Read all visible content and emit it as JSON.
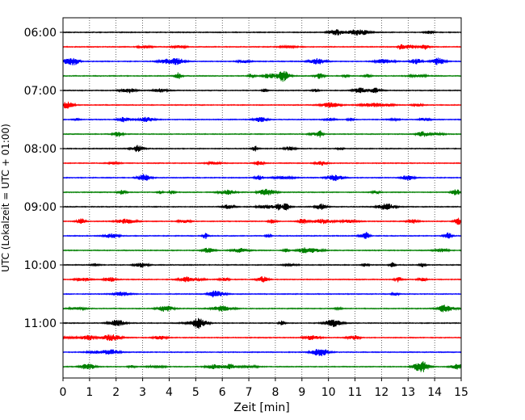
{
  "chart_data": {
    "type": "line",
    "chart_kind": "helicorder",
    "xlabel": "Zeit  [min]",
    "ylabel": "UTC (Lokalzeit = UTC + 01:00)",
    "xlim": [
      0,
      15
    ],
    "x_ticks": [
      "0",
      "1",
      "2",
      "3",
      "4",
      "5",
      "6",
      "7",
      "8",
      "9",
      "10",
      "11",
      "12",
      "13",
      "14",
      "15"
    ],
    "y_ticks": [
      "06:00",
      "07:00",
      "08:00",
      "09:00",
      "10:00",
      "11:00"
    ],
    "grid": "vertical dotted lines at each minute",
    "trace_minutes": 15,
    "trace_start": "06:00",
    "trace_count": 24,
    "trace_colors": [
      "#000000",
      "#ff0000",
      "#0000ff",
      "#008000"
    ],
    "legend": "none"
  }
}
